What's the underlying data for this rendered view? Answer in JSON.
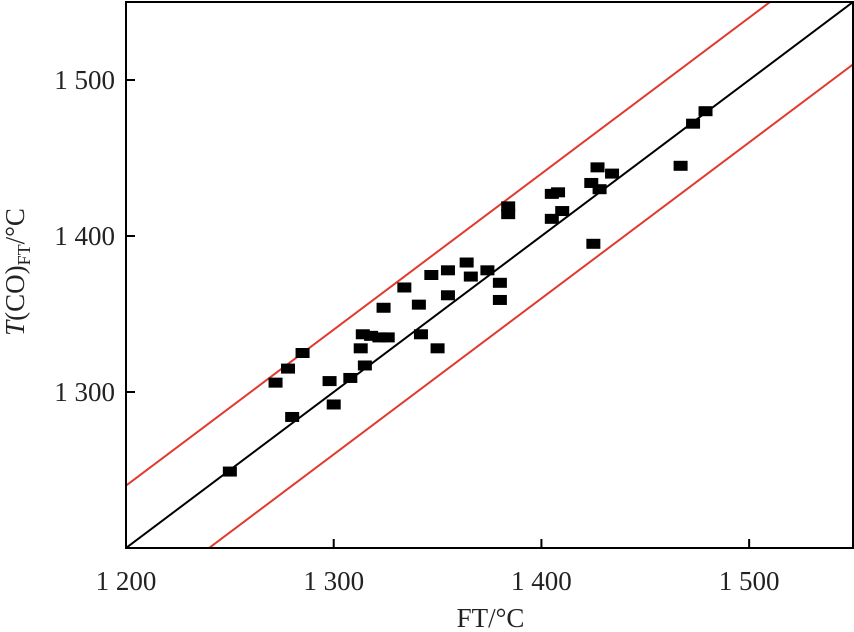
{
  "chart_data": {
    "type": "scatter",
    "xlabel": "FT/°C",
    "ylabel": {
      "italic": "T",
      "main": "(CO)",
      "sub": "FT",
      "unit": "/°C"
    },
    "xlim": [
      1200,
      1550
    ],
    "ylim": [
      1200,
      1550
    ],
    "x_ticks": [
      1200,
      1300,
      1400,
      1500
    ],
    "y_ticks": [
      1300,
      1400,
      1500
    ],
    "x_tick_labels": [
      "1 200",
      "1 300",
      "1 400",
      "1 500"
    ],
    "y_tick_labels": [
      "1 300",
      "1 400",
      "1 500"
    ],
    "grid": false,
    "points": [
      [
        1250,
        1249
      ],
      [
        1272,
        1306
      ],
      [
        1278,
        1315
      ],
      [
        1280,
        1284
      ],
      [
        1285,
        1325
      ],
      [
        1298,
        1307
      ],
      [
        1300,
        1292
      ],
      [
        1308,
        1309
      ],
      [
        1313,
        1328
      ],
      [
        1314,
        1337
      ],
      [
        1315,
        1317
      ],
      [
        1318,
        1336
      ],
      [
        1322,
        1335
      ],
      [
        1324,
        1354
      ],
      [
        1326,
        1335
      ],
      [
        1334,
        1367
      ],
      [
        1341,
        1356
      ],
      [
        1342,
        1337
      ],
      [
        1347,
        1375
      ],
      [
        1350,
        1328
      ],
      [
        1355,
        1362
      ],
      [
        1355,
        1378
      ],
      [
        1364,
        1383
      ],
      [
        1366,
        1374
      ],
      [
        1374,
        1378
      ],
      [
        1380,
        1370
      ],
      [
        1380,
        1359
      ],
      [
        1384,
        1419
      ],
      [
        1384,
        1414
      ],
      [
        1405,
        1427
      ],
      [
        1405,
        1411
      ],
      [
        1408,
        1428
      ],
      [
        1410,
        1416
      ],
      [
        1424,
        1434
      ],
      [
        1425,
        1395
      ],
      [
        1427,
        1444
      ],
      [
        1428,
        1430
      ],
      [
        1434,
        1440
      ],
      [
        1467,
        1445
      ],
      [
        1473,
        1472
      ],
      [
        1479,
        1480
      ]
    ],
    "lines": [
      {
        "type": "identity",
        "offset": 0,
        "color": "#000000"
      },
      {
        "type": "bound",
        "offset": 40,
        "color": "#e03a2f"
      },
      {
        "type": "bound",
        "offset": -40,
        "color": "#e03a2f"
      }
    ]
  }
}
